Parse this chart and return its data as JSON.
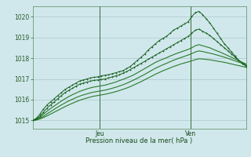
{
  "xlabel": "Pression niveau de la mer( hPa )",
  "bg_color": "#d0e8ec",
  "grid_color": "#aac8cc",
  "line_color_dark": "#1a6020",
  "line_color_mid": "#2a7a2a",
  "line_color_light": "#3a9a3a",
  "ylim": [
    1014.6,
    1020.5
  ],
  "yticks": [
    1015,
    1016,
    1017,
    1018,
    1019,
    1020
  ],
  "vline_x": [
    0.315,
    0.74
  ],
  "vline_labels": [
    "Jeu",
    "Ven"
  ],
  "n": 60,
  "series_top_marker": [
    1015.0,
    1015.1,
    1015.3,
    1015.55,
    1015.75,
    1015.9,
    1016.05,
    1016.2,
    1016.35,
    1016.5,
    1016.6,
    1016.7,
    1016.8,
    1016.9,
    1016.95,
    1017.0,
    1017.05,
    1017.08,
    1017.1,
    1017.15,
    1017.18,
    1017.2,
    1017.25,
    1017.3,
    1017.35,
    1017.4,
    1017.5,
    1017.6,
    1017.75,
    1017.9,
    1018.05,
    1018.2,
    1018.4,
    1018.55,
    1018.7,
    1018.85,
    1018.95,
    1019.05,
    1019.2,
    1019.35,
    1019.45,
    1019.55,
    1019.65,
    1019.75,
    1020.0,
    1020.2,
    1020.25,
    1020.1,
    1019.9,
    1019.7,
    1019.45,
    1019.2,
    1018.95,
    1018.7,
    1018.5,
    1018.3,
    1018.1,
    1017.9,
    1017.75,
    1017.6
  ],
  "series_mid_marker": [
    1015.0,
    1015.08,
    1015.2,
    1015.4,
    1015.6,
    1015.75,
    1015.9,
    1016.05,
    1016.2,
    1016.35,
    1016.45,
    1016.55,
    1016.65,
    1016.75,
    1016.8,
    1016.85,
    1016.9,
    1016.93,
    1016.95,
    1016.97,
    1017.0,
    1017.05,
    1017.1,
    1017.15,
    1017.2,
    1017.28,
    1017.35,
    1017.45,
    1017.55,
    1017.65,
    1017.75,
    1017.85,
    1017.95,
    1018.05,
    1018.15,
    1018.25,
    1018.35,
    1018.45,
    1018.55,
    1018.65,
    1018.75,
    1018.85,
    1018.95,
    1019.05,
    1019.2,
    1019.35,
    1019.4,
    1019.3,
    1019.2,
    1019.1,
    1018.95,
    1018.8,
    1018.65,
    1018.5,
    1018.35,
    1018.2,
    1018.05,
    1017.9,
    1017.75,
    1017.65
  ],
  "series_smooth1": [
    1015.0,
    1015.05,
    1015.15,
    1015.3,
    1015.45,
    1015.58,
    1015.7,
    1015.82,
    1015.94,
    1016.05,
    1016.15,
    1016.24,
    1016.32,
    1016.4,
    1016.46,
    1016.52,
    1016.57,
    1016.61,
    1016.64,
    1016.67,
    1016.7,
    1016.75,
    1016.8,
    1016.85,
    1016.92,
    1016.98,
    1017.05,
    1017.12,
    1017.2,
    1017.3,
    1017.4,
    1017.5,
    1017.6,
    1017.7,
    1017.8,
    1017.88,
    1017.95,
    1018.02,
    1018.1,
    1018.17,
    1018.24,
    1018.3,
    1018.36,
    1018.42,
    1018.5,
    1018.6,
    1018.65,
    1018.6,
    1018.55,
    1018.5,
    1018.42,
    1018.35,
    1018.28,
    1018.2,
    1018.12,
    1018.04,
    1017.96,
    1017.88,
    1017.8,
    1017.72
  ],
  "series_smooth2": [
    1015.0,
    1015.03,
    1015.1,
    1015.2,
    1015.32,
    1015.43,
    1015.54,
    1015.65,
    1015.75,
    1015.85,
    1015.94,
    1016.02,
    1016.1,
    1016.17,
    1016.23,
    1016.28,
    1016.33,
    1016.37,
    1016.4,
    1016.43,
    1016.46,
    1016.5,
    1016.55,
    1016.6,
    1016.66,
    1016.72,
    1016.79,
    1016.87,
    1016.95,
    1017.04,
    1017.13,
    1017.22,
    1017.32,
    1017.42,
    1017.52,
    1017.6,
    1017.68,
    1017.75,
    1017.83,
    1017.9,
    1017.97,
    1018.03,
    1018.09,
    1018.15,
    1018.22,
    1018.3,
    1018.35,
    1018.32,
    1018.28,
    1018.24,
    1018.2,
    1018.15,
    1018.1,
    1018.05,
    1017.99,
    1017.93,
    1017.87,
    1017.81,
    1017.75,
    1017.7
  ],
  "series_smooth3_low": [
    1015.0,
    1015.02,
    1015.07,
    1015.14,
    1015.22,
    1015.31,
    1015.4,
    1015.49,
    1015.58,
    1015.67,
    1015.75,
    1015.83,
    1015.9,
    1015.97,
    1016.03,
    1016.08,
    1016.13,
    1016.17,
    1016.2,
    1016.23,
    1016.26,
    1016.3,
    1016.34,
    1016.39,
    1016.44,
    1016.5,
    1016.56,
    1016.63,
    1016.71,
    1016.79,
    1016.87,
    1016.96,
    1017.05,
    1017.14,
    1017.23,
    1017.31,
    1017.39,
    1017.46,
    1017.53,
    1017.6,
    1017.66,
    1017.72,
    1017.77,
    1017.82,
    1017.87,
    1017.93,
    1017.97,
    1017.96,
    1017.94,
    1017.92,
    1017.89,
    1017.86,
    1017.83,
    1017.8,
    1017.76,
    1017.72,
    1017.68,
    1017.64,
    1017.6,
    1017.56
  ]
}
